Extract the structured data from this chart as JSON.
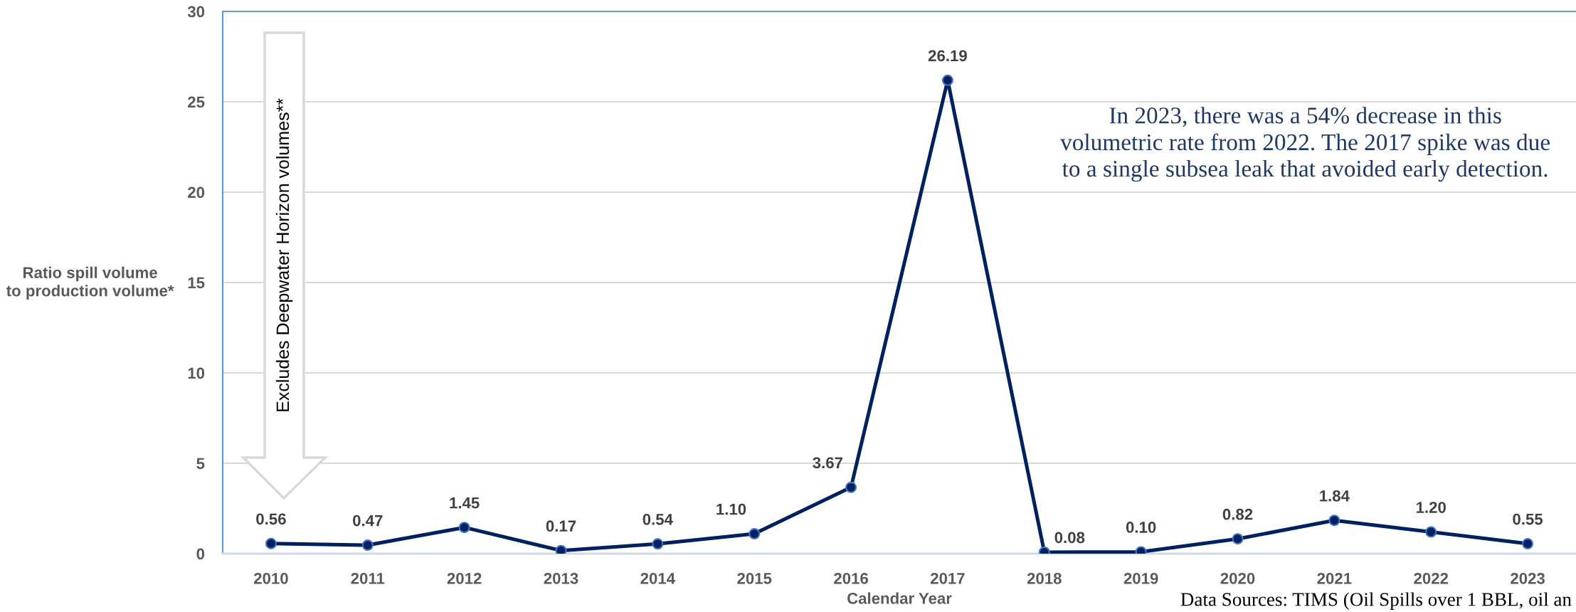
{
  "chart_data": {
    "type": "line",
    "xlabel": "Calendar Year",
    "ylabel": "Ratio spill volume\nto production volume*",
    "annotations": [
      "Excludes Deepwater Horizon volumes**",
      "In 2023, there was a 54% decrease in this\nvolumetric rate from 2022. The 2017 spike was due\nto a single subsea leak that avoided early detection.",
      "Data Sources: TIMS (Oil Spills over 1 BBL, oil an"
    ],
    "categories": [
      "2010",
      "2011",
      "2012",
      "2013",
      "2014",
      "2015",
      "2016",
      "2017",
      "2018",
      "2019",
      "2020",
      "2021",
      "2022",
      "2023"
    ],
    "values": [
      0.56,
      0.47,
      1.45,
      0.17,
      0.54,
      1.1,
      3.67,
      26.19,
      0.08,
      0.1,
      0.82,
      1.84,
      1.2,
      0.55
    ],
    "value_labels": [
      "0.56",
      "0.47",
      "1.45",
      "0.17",
      "0.54",
      "1.10",
      "3.67",
      "26.19",
      "0.08",
      "0.10",
      "0.82",
      "1.84",
      "1.20",
      "0.55"
    ],
    "color": "#002060",
    "ylim": [
      0,
      30
    ],
    "yticks": [
      0,
      5,
      10,
      15,
      20,
      25,
      30
    ],
    "grid": "y",
    "marker": "circle",
    "line_style": "solid"
  }
}
